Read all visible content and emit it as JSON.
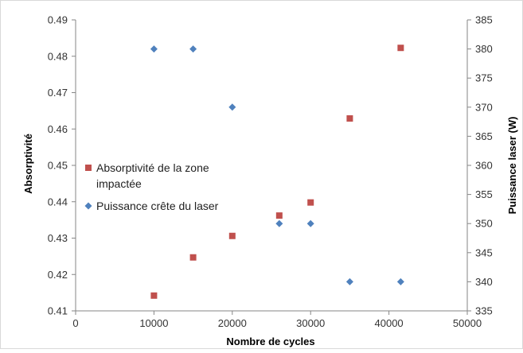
{
  "chart_data": {
    "type": "scatter",
    "xlabel": "Nombre de cycles",
    "ylabel_left": "Absorptivité",
    "ylabel_right": "Puissance laser (W)",
    "xlim": [
      0,
      50000
    ],
    "ylim_left": [
      0.41,
      0.49
    ],
    "ylim_right": [
      335,
      385
    ],
    "x_ticks": [
      "0",
      "10000",
      "20000",
      "30000",
      "40000",
      "50000"
    ],
    "y_ticks_left": [
      "0.41",
      "0.42",
      "0.43",
      "0.44",
      "0.45",
      "0.46",
      "0.47",
      "0.48",
      "0.49"
    ],
    "y_ticks_right": [
      "335",
      "340",
      "345",
      "350",
      "355",
      "360",
      "365",
      "370",
      "375",
      "380",
      "385"
    ],
    "grid": false,
    "legend_position": "left-middle",
    "series": [
      {
        "name": "Absorptivité de la zone impactée",
        "legend_lines": [
          "Absorptivité de la zone",
          "impactée"
        ],
        "axis": "left",
        "marker": "square",
        "color": "#C0504D",
        "points": [
          {
            "x": 10000,
            "y": 0.4142
          },
          {
            "x": 15000,
            "y": 0.4247
          },
          {
            "x": 20000,
            "y": 0.4306
          },
          {
            "x": 26000,
            "y": 0.4362
          },
          {
            "x": 30000,
            "y": 0.4398
          },
          {
            "x": 35000,
            "y": 0.4629
          },
          {
            "x": 41500,
            "y": 0.4823
          }
        ]
      },
      {
        "name": "Puissance crête du laser",
        "legend_lines": [
          "Puissance crête du laser"
        ],
        "axis": "right",
        "marker": "diamond",
        "color": "#4F81BD",
        "points": [
          {
            "x": 10000,
            "y": 380
          },
          {
            "x": 15000,
            "y": 380
          },
          {
            "x": 20000,
            "y": 370
          },
          {
            "x": 26000,
            "y": 350
          },
          {
            "x": 30000,
            "y": 350
          },
          {
            "x": 35000,
            "y": 340
          },
          {
            "x": 41500,
            "y": 340
          }
        ]
      }
    ]
  }
}
